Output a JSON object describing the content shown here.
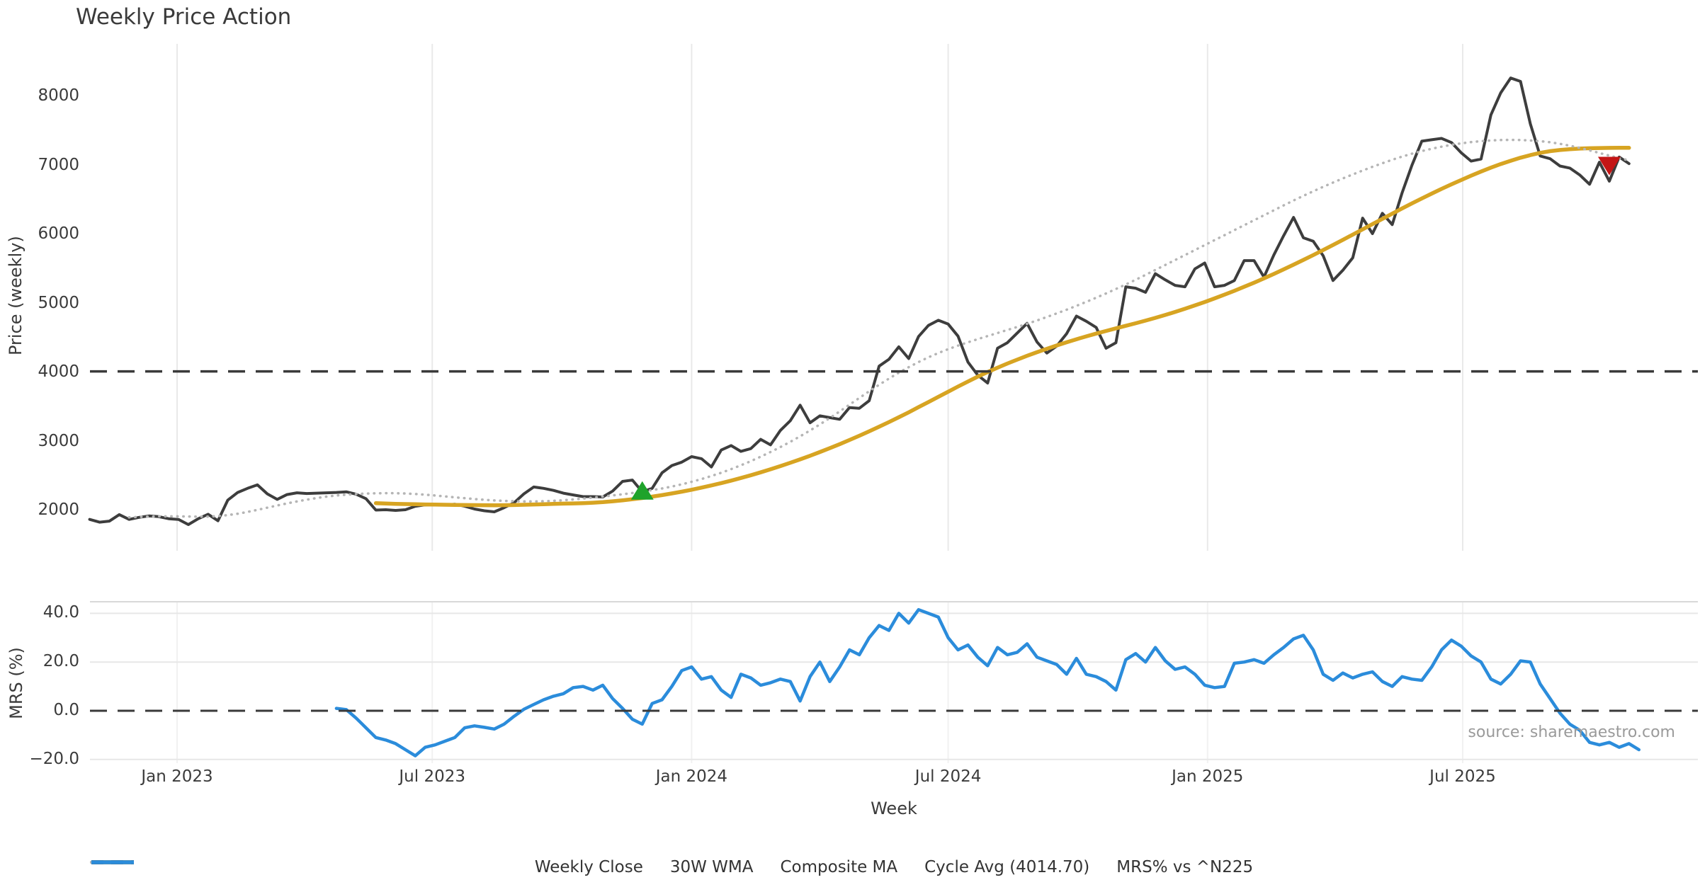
{
  "title": "Weekly Price Action",
  "source_note": "source: sharemaestro.com",
  "colors": {
    "close": "#3d3d3d",
    "wma": "#d7a422",
    "composite": "#b5b5b5",
    "cycle_avg": "#3a3a3a",
    "mrs": "#2b8cdb",
    "buy_marker": "#1fa32b",
    "sell_marker": "#c41515",
    "gridline": "#e9e9e9",
    "panel_border": "#d9d9d9",
    "tick_text": "#3b3b3b"
  },
  "axes": {
    "x_label": "Week",
    "price_label": "Price (weekly)",
    "mrs_label": "MRS (%)",
    "x_ticks": [
      {
        "date": "2023-01-01",
        "label": "Jan 2023"
      },
      {
        "date": "2023-07-01",
        "label": "Jul 2023"
      },
      {
        "date": "2024-01-01",
        "label": "Jan 2024"
      },
      {
        "date": "2024-07-01",
        "label": "Jul 2024"
      },
      {
        "date": "2025-01-01",
        "label": "Jan 2025"
      },
      {
        "date": "2025-07-01",
        "label": "Jul 2025"
      }
    ],
    "price_ticks": [
      {
        "v": 2000,
        "label": "2000"
      },
      {
        "v": 3000,
        "label": "3000"
      },
      {
        "v": 4000,
        "label": "4000"
      },
      {
        "v": 5000,
        "label": "5000"
      },
      {
        "v": 6000,
        "label": "6000"
      },
      {
        "v": 7000,
        "label": "7000"
      },
      {
        "v": 8000,
        "label": "8000"
      }
    ],
    "mrs_ticks": [
      {
        "v": 40,
        "label": "40.0"
      },
      {
        "v": 20,
        "label": "20.0"
      },
      {
        "v": 0,
        "label": "0.0"
      },
      {
        "v": -20,
        "label": "−20.0"
      }
    ],
    "price_range": [
      1500,
      8600
    ],
    "mrs_range": [
      -24,
      44
    ]
  },
  "legend": [
    {
      "label": "Weekly Close",
      "color": "#3d3d3d",
      "style": "solid"
    },
    {
      "label": "30W WMA",
      "color": "#d7a422",
      "style": "solid"
    },
    {
      "label": "Composite MA",
      "color": "#b5b5b5",
      "style": "dotted"
    },
    {
      "label": "Cycle Avg (4014.70)",
      "color": "#3a3a3a",
      "style": "dashed"
    },
    {
      "label": "MRS% vs ^N225",
      "color": "#2b8cdb",
      "style": "solid"
    }
  ],
  "chart_data": [
    {
      "type": "line",
      "panel": "price",
      "name": "Weekly Close",
      "color": "#3d3d3d",
      "width": 4,
      "style": "solid",
      "start": "2022-10-31",
      "step_days": 7,
      "values": [
        1870,
        1830,
        1845,
        1940,
        1870,
        1900,
        1920,
        1910,
        1880,
        1870,
        1795,
        1880,
        1945,
        1850,
        2150,
        2260,
        2320,
        2370,
        2240,
        2160,
        2230,
        2255,
        2245,
        2250,
        2255,
        2260,
        2270,
        2235,
        2170,
        2005,
        2010,
        2000,
        2010,
        2060,
        2080,
        2085,
        2080,
        2090,
        2060,
        2020,
        1995,
        1980,
        2040,
        2110,
        2240,
        2340,
        2320,
        2290,
        2250,
        2225,
        2200,
        2200,
        2195,
        2280,
        2420,
        2440,
        2270,
        2320,
        2545,
        2650,
        2700,
        2780,
        2750,
        2630,
        2875,
        2940,
        2855,
        2895,
        3030,
        2950,
        3160,
        3300,
        3525,
        3270,
        3370,
        3345,
        3320,
        3490,
        3480,
        3590,
        4090,
        4190,
        4370,
        4200,
        4520,
        4680,
        4755,
        4700,
        4525,
        4150,
        3960,
        3845,
        4350,
        4430,
        4570,
        4710,
        4440,
        4280,
        4380,
        4560,
        4815,
        4740,
        4650,
        4350,
        4430,
        5240,
        5220,
        5160,
        5430,
        5340,
        5260,
        5240,
        5500,
        5585,
        5240,
        5260,
        5330,
        5620,
        5620,
        5380,
        5700,
        5980,
        6245,
        5950,
        5900,
        5690,
        5330,
        5480,
        5660,
        6235,
        6010,
        6305,
        6140,
        6600,
        7000,
        7350,
        7370,
        7390,
        7330,
        7180,
        7060,
        7090,
        7730,
        8050,
        8265,
        8215,
        7600,
        7135,
        7095,
        6990,
        6960,
        6860,
        6725,
        7045,
        6770,
        7120,
        7025
      ]
    },
    {
      "type": "line",
      "panel": "price",
      "name": "30W WMA",
      "color": "#d7a422",
      "width": 5.5,
      "style": "solid",
      "start": "2023-05-22",
      "step_days": 7,
      "values": [
        2105,
        2100,
        2095,
        2092,
        2089,
        2086,
        2084,
        2082,
        2080,
        2078,
        2077,
        2076,
        2075,
        2076,
        2078,
        2082,
        2086,
        2090,
        2094,
        2098,
        2102,
        2106,
        2112,
        2120,
        2132,
        2146,
        2162,
        2180,
        2200,
        2222,
        2246,
        2272,
        2300,
        2330,
        2362,
        2396,
        2432,
        2470,
        2510,
        2552,
        2596,
        2642,
        2690,
        2740,
        2792,
        2846,
        2902,
        2960,
        3020,
        3082,
        3146,
        3212,
        3280,
        3350,
        3422,
        3496,
        3570,
        3645,
        3720,
        3795,
        3868,
        3938,
        4005,
        4068,
        4128,
        4185,
        4240,
        4292,
        4342,
        4390,
        4436,
        4480,
        4522,
        4562,
        4600,
        4638,
        4675,
        4712,
        4750,
        4790,
        4832,
        4876,
        4922,
        4970,
        5020,
        5072,
        5126,
        5182,
        5240,
        5300,
        5362,
        5426,
        5492,
        5560,
        5630,
        5700,
        5772,
        5845,
        5920,
        5996,
        6072,
        6148,
        6224,
        6300,
        6375,
        6448,
        6520,
        6590,
        6658,
        6724,
        6788,
        6850,
        6910,
        6966,
        7018,
        7066,
        7110,
        7148,
        7180,
        7205,
        7222,
        7234,
        7242,
        7247,
        7250,
        7252,
        7253,
        7253
      ]
    },
    {
      "type": "line",
      "panel": "price",
      "name": "Composite MA",
      "color": "#b5b5b5",
      "width": 3.5,
      "style": "dotted",
      "start": "2022-11-28",
      "step_days": 7,
      "values": [
        1900,
        1906,
        1911,
        1914,
        1915,
        1914,
        1912,
        1910,
        1911,
        1918,
        1932,
        1952,
        1978,
        2008,
        2040,
        2072,
        2102,
        2130,
        2156,
        2180,
        2200,
        2216,
        2228,
        2238,
        2244,
        2248,
        2250,
        2249,
        2245,
        2238,
        2228,
        2216,
        2203,
        2190,
        2177,
        2165,
        2154,
        2145,
        2138,
        2133,
        2130,
        2130,
        2133,
        2139,
        2148,
        2159,
        2172,
        2186,
        2201,
        2217,
        2234,
        2252,
        2272,
        2294,
        2318,
        2346,
        2378,
        2414,
        2454,
        2498,
        2546,
        2598,
        2654,
        2714,
        2778,
        2846,
        2918,
        2994,
        3074,
        3158,
        3246,
        3338,
        3434,
        3532,
        3630,
        3726,
        3820,
        3910,
        3996,
        4076,
        4150,
        4218,
        4280,
        4336,
        4388,
        4436,
        4482,
        4526,
        4570,
        4614,
        4658,
        4704,
        4752,
        4802,
        4854,
        4908,
        4964,
        5022,
        5082,
        5144,
        5208,
        5274,
        5342,
        5412,
        5484,
        5556,
        5628,
        5700,
        5772,
        5844,
        5916,
        5988,
        6060,
        6132,
        6204,
        6276,
        6348,
        6420,
        6490,
        6558,
        6624,
        6688,
        6750,
        6810,
        6868,
        6924,
        6978,
        7030,
        7080,
        7126,
        7168,
        7206,
        7240,
        7270,
        7296,
        7318,
        7336,
        7350,
        7360,
        7366,
        7368,
        7366,
        7360,
        7350,
        7334,
        7312,
        7284,
        7252,
        7216,
        7178,
        7140,
        7104,
        7072
      ]
    },
    {
      "type": "hline",
      "panel": "price",
      "name": "Cycle Avg",
      "value": 4014.7,
      "color": "#3a3a3a",
      "width": 3.5,
      "style": "dashed"
    },
    {
      "type": "line",
      "panel": "mrs",
      "name": "MRS% vs ^N225",
      "color": "#2b8cdb",
      "width": 4.5,
      "style": "solid",
      "start": "2023-04-24",
      "step_days": 7,
      "values": [
        1,
        0.5,
        -3,
        -7,
        -11,
        -12,
        -13.5,
        -16,
        -18.5,
        -15,
        -14,
        -12.5,
        -11,
        -7,
        -6.2,
        -6.8,
        -7.5,
        -5.5,
        -2.3,
        0.6,
        2.6,
        4.5,
        6,
        7,
        9.5,
        10,
        8.5,
        10.5,
        5,
        1,
        -3.5,
        -5.5,
        3,
        4.5,
        10,
        16.5,
        18,
        13,
        14,
        8.5,
        5.5,
        15,
        13.5,
        10.5,
        11.5,
        13,
        12,
        4,
        14,
        20,
        12,
        18,
        25,
        23,
        30,
        35,
        33,
        40,
        36,
        41.5,
        40,
        38.5,
        30,
        25,
        27,
        22,
        18.5,
        26,
        23,
        24,
        27.5,
        22,
        20.5,
        19,
        15,
        21.5,
        15,
        14,
        12,
        8.5,
        21,
        23.5,
        20,
        26,
        20.5,
        17,
        18,
        15,
        10.5,
        9.5,
        10,
        19.5,
        20,
        21,
        19.5,
        23,
        26,
        29.5,
        31,
        25,
        15,
        12.5,
        15.5,
        13.5,
        15,
        16,
        12,
        10,
        14,
        13,
        12.5,
        18,
        25,
        29,
        26.5,
        22.5,
        20,
        13,
        11,
        15,
        20.5,
        20,
        11,
        5,
        -1,
        -5.5,
        -8,
        -13,
        -14,
        -13,
        -15,
        -13.5,
        -16
      ]
    },
    {
      "type": "hline",
      "panel": "mrs",
      "name": "MRS zero line",
      "value": 0,
      "color": "#3a3a3a",
      "width": 3,
      "style": "dashed"
    },
    {
      "type": "marker",
      "panel": "price",
      "name": "buy-signal",
      "shape": "triangle-up",
      "color": "#1fa32b",
      "date": "2023-11-27",
      "value": 2280
    },
    {
      "type": "marker",
      "panel": "price",
      "name": "sell-signal",
      "shape": "triangle-down",
      "color": "#c41515",
      "date": "2025-10-13",
      "value": 7000
    }
  ]
}
